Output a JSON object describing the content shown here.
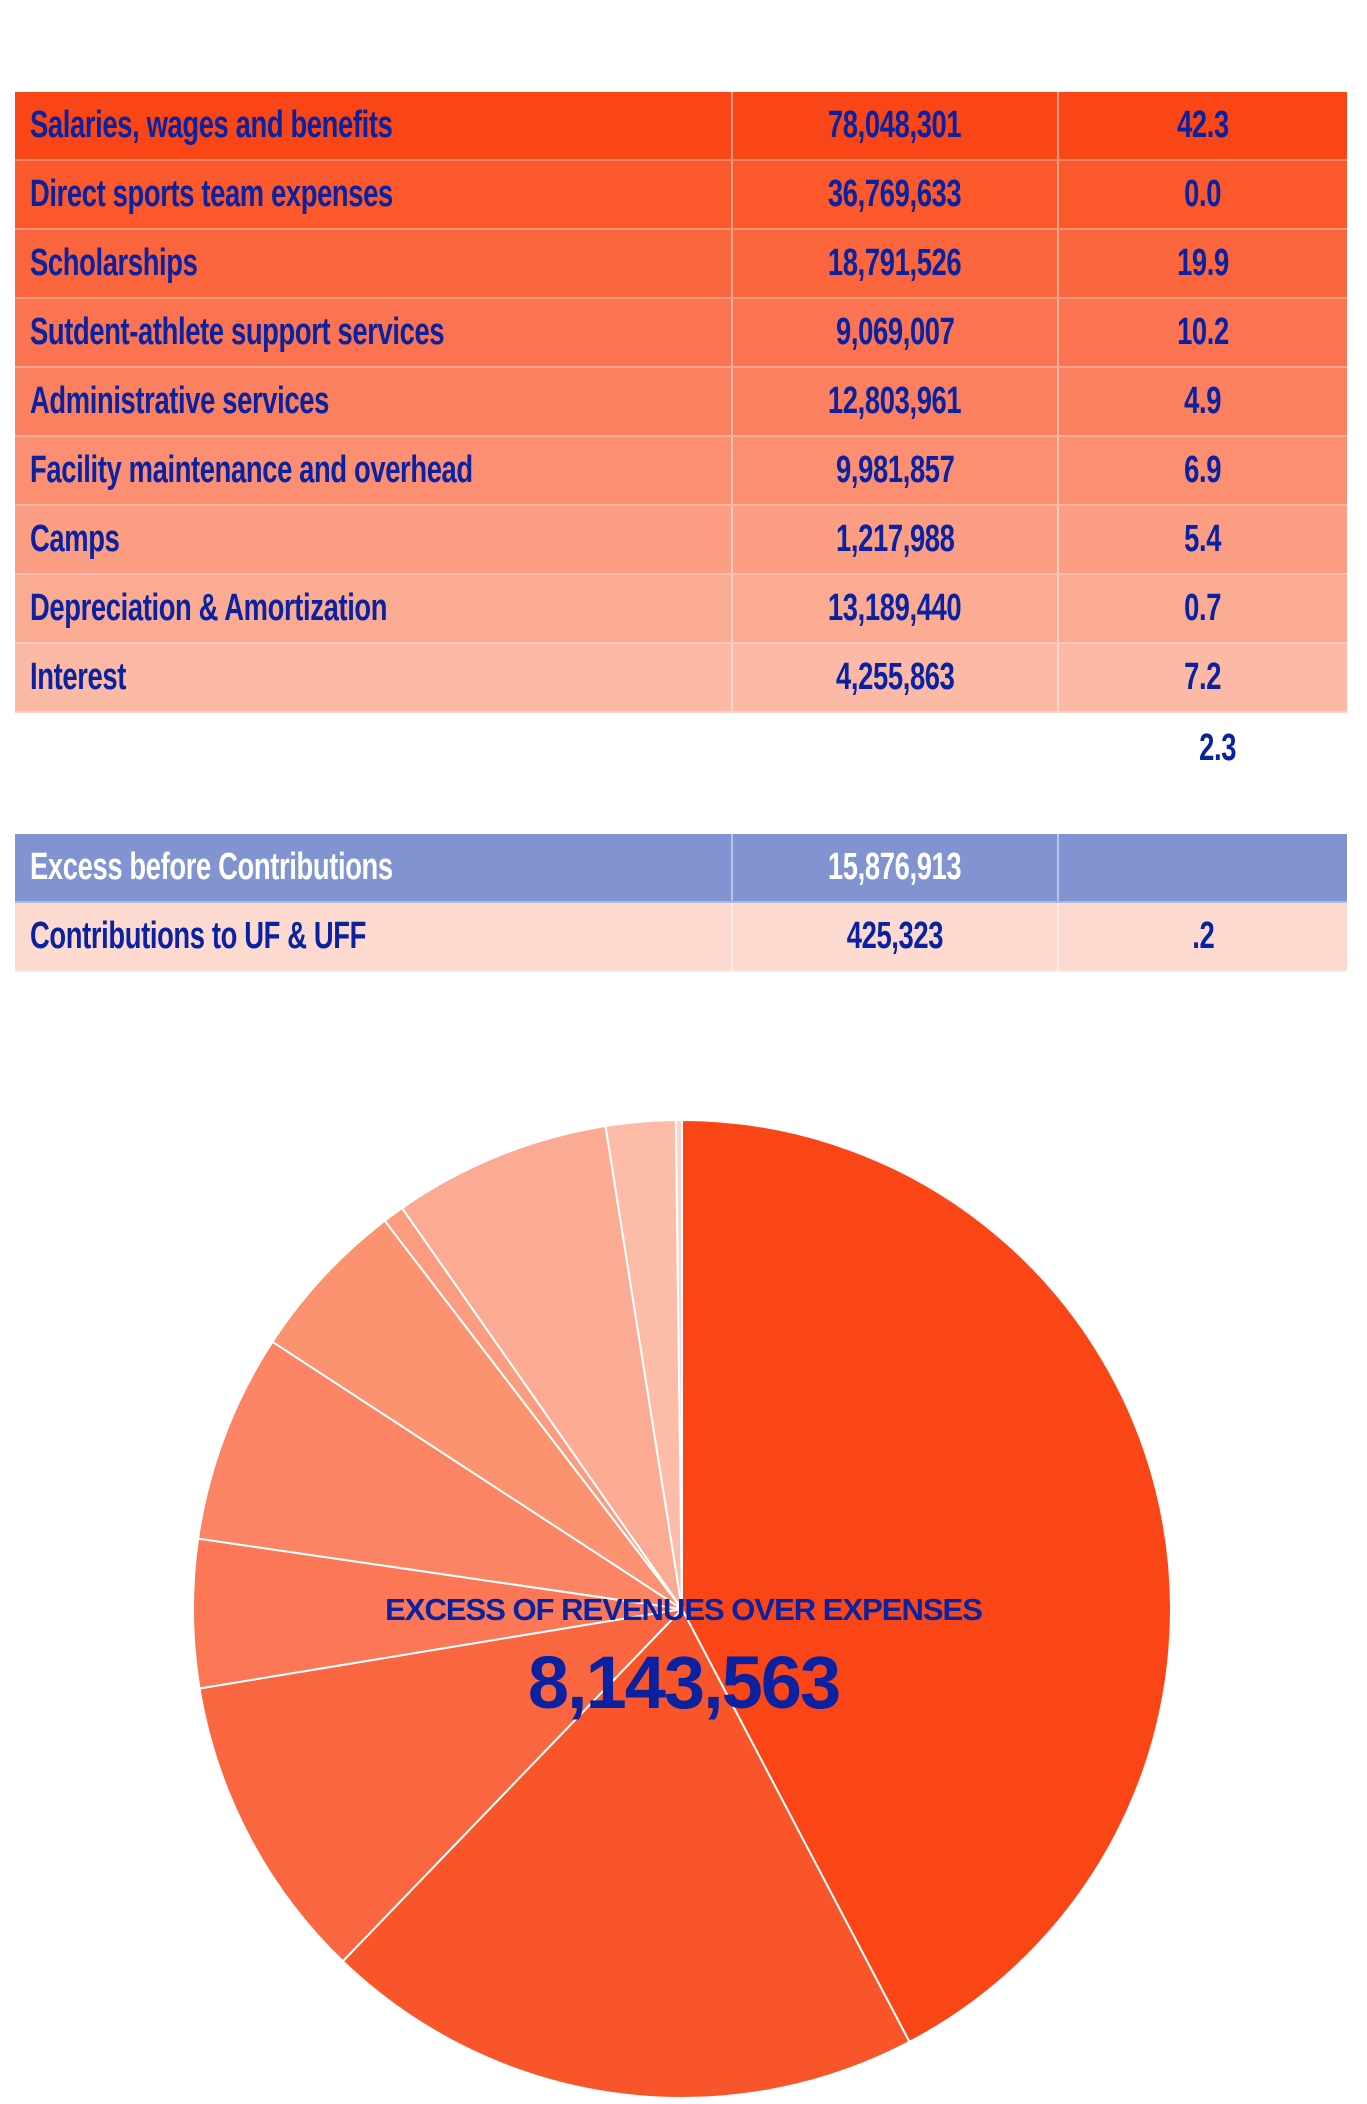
{
  "table": {
    "rows": [
      {
        "label": "Salaries, wages and benefits",
        "amount": "78,048,301",
        "percent": "42.3",
        "color": "#fa4617"
      },
      {
        "label": "Direct sports team expenses",
        "amount": "36,769,633",
        "percent": "0.0",
        "color": "#fb582c"
      },
      {
        "label": "Scholarships",
        "amount": "18,791,526",
        "percent": "19.9",
        "color": "#fb653d"
      },
      {
        "label": "Sutdent-athlete support services",
        "amount": "9,069,007",
        "percent": "10.2",
        "color": "#fb7350"
      },
      {
        "label": "Administrative services",
        "amount": "12,803,961",
        "percent": "4.9",
        "color": "#fb8060"
      },
      {
        "label": "Facility maintenance and overhead",
        "amount": "9,981,857",
        "percent": "6.9",
        "color": "#fc8f71"
      },
      {
        "label": "Camps",
        "amount": "1,217,988",
        "percent": "5.4",
        "color": "#fc9e83"
      },
      {
        "label": "Depreciation & Amortization",
        "amount": "13,189,440",
        "percent": "0.7",
        "color": "#fcab93"
      },
      {
        "label": "Interest",
        "amount": "4,255,863",
        "percent": "7.2",
        "color": "#fcbaa6"
      }
    ],
    "extra_percent": "2.3",
    "summary": [
      {
        "label": "Excess before Contributions",
        "amount": "15,876,913",
        "percent": "",
        "color": "#8193d1",
        "text_color": "#ffffff"
      },
      {
        "label": "Contributions to UF & UFF",
        "amount": "425,323",
        "percent": ".2",
        "color": "#fddad0",
        "text_color": "#0a22a0"
      }
    ]
  },
  "chart_data": {
    "type": "pie",
    "title": "EXCESS OF REVENUES OVER EXPENSES",
    "center_value": "8,143,563",
    "values": [
      42.3,
      19.9,
      10.2,
      4.9,
      6.9,
      5.4,
      0.7,
      7.2,
      2.3,
      0.2,
      0.0
    ],
    "colors": [
      "#fa4617",
      "#f9552b",
      "#fa6640",
      "#fb7756",
      "#fa8463",
      "#fb9270",
      "#fb9b7f",
      "#fbaa93",
      "#fcbca8",
      "#fdd3c6",
      "#fde3db"
    ],
    "start": "top",
    "direction": "clockwise"
  }
}
